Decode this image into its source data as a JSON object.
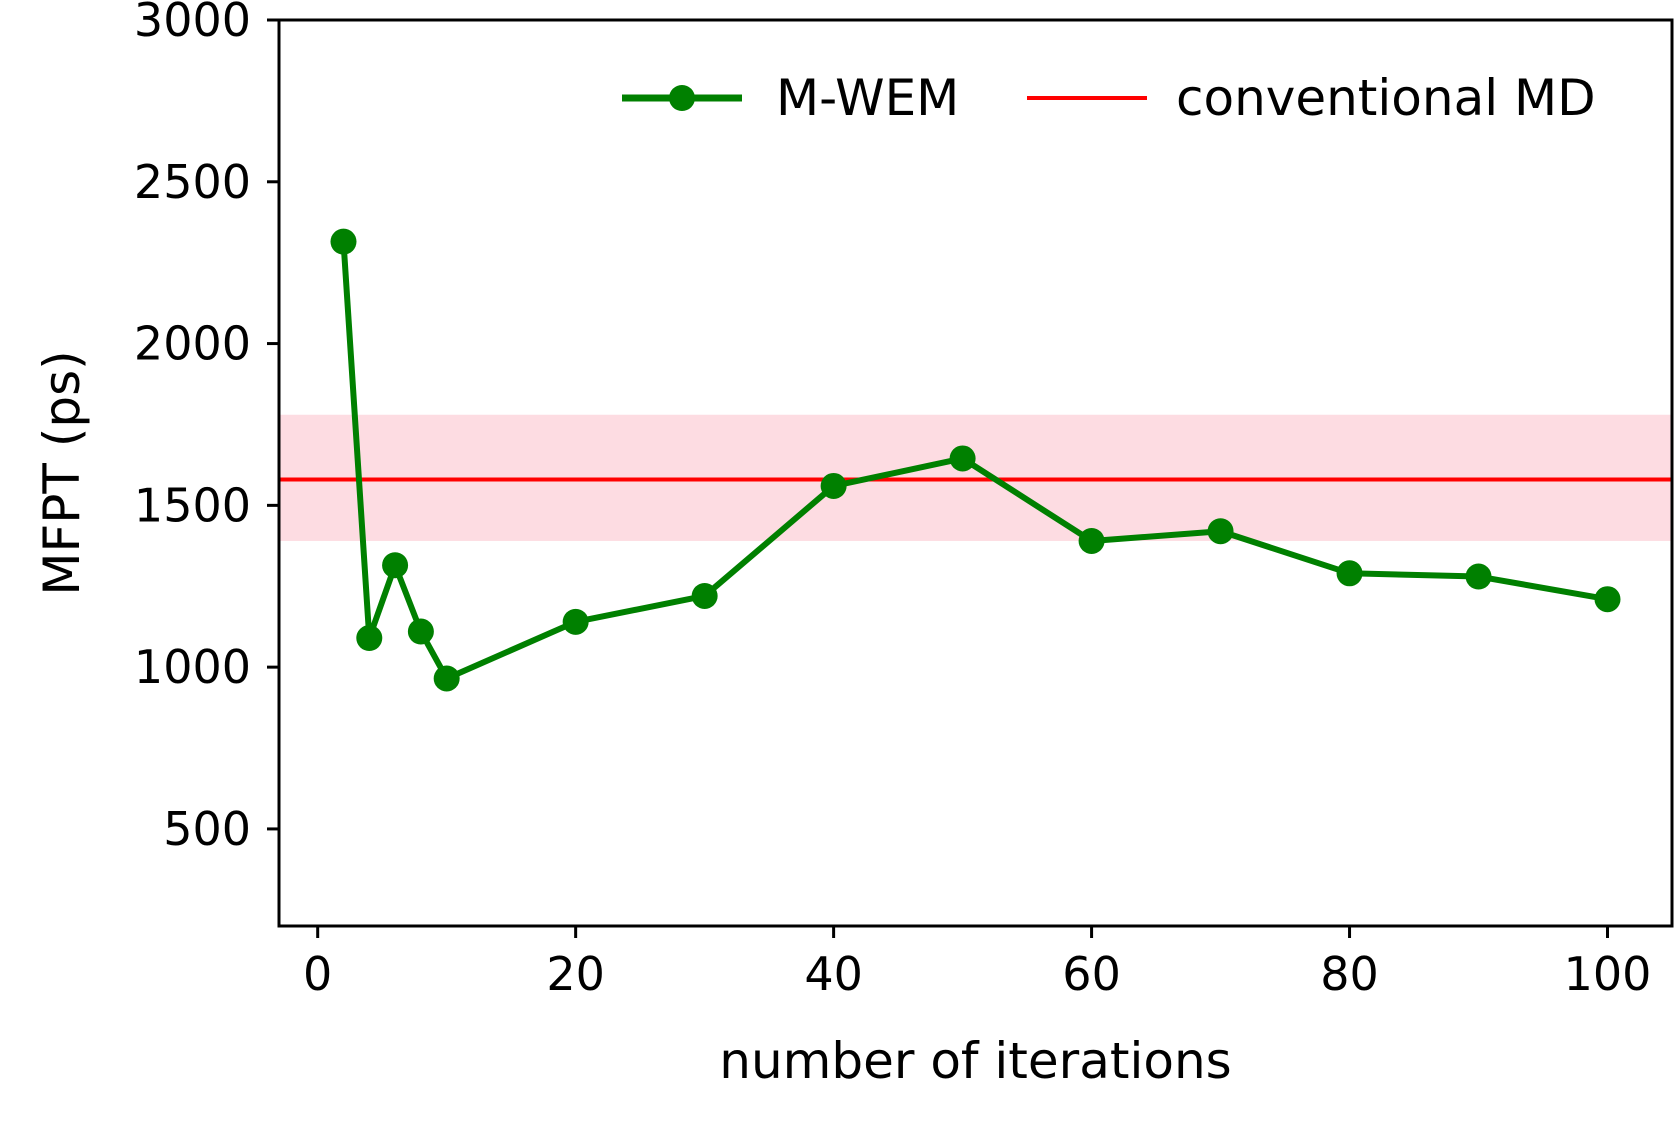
{
  "chart_data": {
    "type": "line",
    "title": "",
    "xlabel": "number of iterations",
    "ylabel": "MFPT (ps)",
    "xlim": [
      -3,
      105
    ],
    "ylim": [
      200,
      3000
    ],
    "xticks": [
      0,
      20,
      40,
      60,
      80,
      100
    ],
    "yticks": [
      500,
      1000,
      1500,
      2000,
      2500,
      3000
    ],
    "grid": false,
    "legend_position": "top-right",
    "series": [
      {
        "name": "M-WEM",
        "type": "line-marker",
        "color": "#008000",
        "x": [
          2,
          4,
          6,
          8,
          10,
          20,
          30,
          40,
          50,
          60,
          70,
          80,
          90,
          100
        ],
        "y": [
          2315,
          1090,
          1315,
          1110,
          965,
          1140,
          1220,
          1560,
          1645,
          1390,
          1420,
          1290,
          1280,
          1210
        ]
      },
      {
        "name": "conventional MD",
        "type": "hline",
        "color": "#ff0000",
        "y": 1580,
        "band": [
          1390,
          1780
        ],
        "band_color": "#fddce2"
      }
    ]
  }
}
